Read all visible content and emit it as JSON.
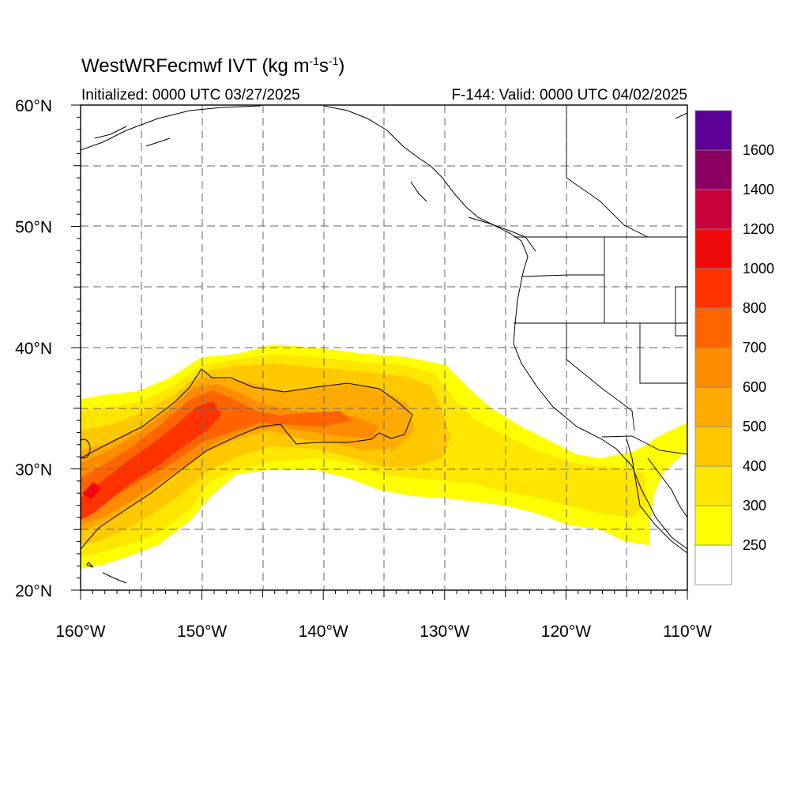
{
  "title": {
    "main": "WestWRFecmwf IVT (kg m",
    "exp1": "-1",
    "mid": "s",
    "exp2": "-1",
    "close": ")"
  },
  "subtitle": {
    "initialized": "Initialized: 0000 UTC 03/27/2025",
    "valid": "F-144: Valid: 0000 UTC 04/02/2025"
  },
  "map": {
    "lon_range": [
      -160,
      -110
    ],
    "lat_range": [
      20,
      60
    ],
    "lon_ticks": [
      {
        "value": -160,
        "label": "160°W"
      },
      {
        "value": -150,
        "label": "150°W"
      },
      {
        "value": -140,
        "label": "140°W"
      },
      {
        "value": -130,
        "label": "130°W"
      },
      {
        "value": -120,
        "label": "120°W"
      },
      {
        "value": -110,
        "label": "110°W"
      }
    ],
    "lat_ticks": [
      {
        "value": 20,
        "label": "20°N"
      },
      {
        "value": 30,
        "label": "30°N"
      },
      {
        "value": 40,
        "label": "40°N"
      },
      {
        "value": 50,
        "label": "50°N"
      },
      {
        "value": 60,
        "label": "60°N"
      }
    ],
    "gridlines": "dashed every 5°"
  },
  "colorbar": {
    "bins": [
      {
        "color": "#ffffff",
        "label": ""
      },
      {
        "color": "#ffff00",
        "label": "250"
      },
      {
        "color": "#ffe600",
        "label": "300"
      },
      {
        "color": "#ffc800",
        "label": "400"
      },
      {
        "color": "#ffaa00",
        "label": "500"
      },
      {
        "color": "#ff8c00",
        "label": "600"
      },
      {
        "color": "#ff6400",
        "label": "700"
      },
      {
        "color": "#ff3200",
        "label": "800"
      },
      {
        "color": "#ee0a0a",
        "label": "1000"
      },
      {
        "color": "#c8003c",
        "label": "1200"
      },
      {
        "color": "#8c0064",
        "label": "1400"
      },
      {
        "color": "#5a0096",
        "label": "1600"
      }
    ]
  }
}
